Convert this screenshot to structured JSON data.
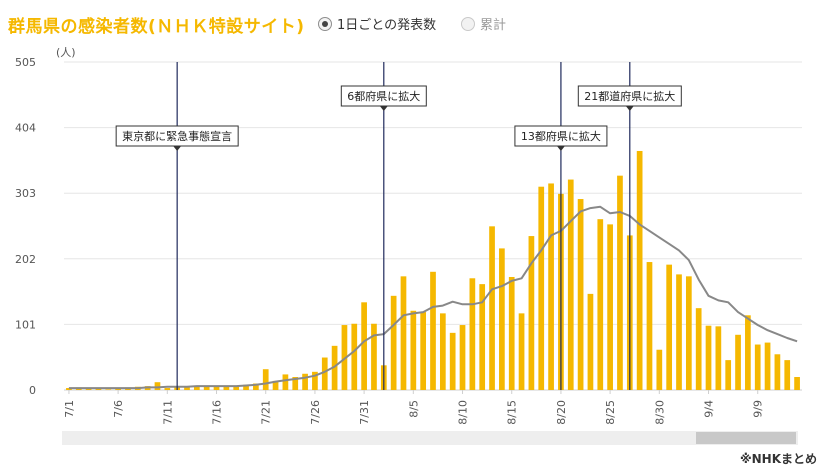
{
  "header": {
    "title": "群馬県の感染者数(ＮＨＫ特設サイト)",
    "radio_daily": "1日ごとの発表数",
    "radio_cumulative": "累計"
  },
  "footer": {
    "source": "※NHKまとめ"
  },
  "colors": {
    "bar": "#f5b800",
    "line": "#888888",
    "title": "#f5b800"
  },
  "chart_data": {
    "type": "bar",
    "ylabel": "(人)",
    "ylim": [
      0,
      505
    ],
    "yticks": [
      0,
      101,
      202,
      303,
      404,
      505
    ],
    "grid": true,
    "x": [
      "7/1",
      "7/2",
      "7/3",
      "7/4",
      "7/5",
      "7/6",
      "7/7",
      "7/8",
      "7/9",
      "7/10",
      "7/11",
      "7/12",
      "7/13",
      "7/14",
      "7/15",
      "7/16",
      "7/17",
      "7/18",
      "7/19",
      "7/20",
      "7/21",
      "7/22",
      "7/23",
      "7/24",
      "7/25",
      "7/26",
      "7/27",
      "7/28",
      "7/29",
      "7/30",
      "7/31",
      "8/1",
      "8/2",
      "8/3",
      "8/4",
      "8/5",
      "8/6",
      "8/7",
      "8/8",
      "8/9",
      "8/10",
      "8/11",
      "8/12",
      "8/13",
      "8/14",
      "8/15",
      "8/16",
      "8/17",
      "8/18",
      "8/19",
      "8/20",
      "8/21",
      "8/22",
      "8/23",
      "8/24",
      "8/25",
      "8/26",
      "8/27",
      "8/28",
      "8/29",
      "8/30",
      "8/31",
      "9/1",
      "9/2",
      "9/3",
      "9/4",
      "9/5",
      "9/6",
      "9/7",
      "9/8",
      "9/9",
      "9/10",
      "9/11",
      "9/12",
      "9/13"
    ],
    "xtick_labels": [
      "7/1",
      "7/6",
      "7/11",
      "7/16",
      "7/21",
      "7/26",
      "7/31",
      "8/5",
      "8/10",
      "8/15",
      "8/20",
      "8/25",
      "8/30",
      "9/4",
      "9/9"
    ],
    "series": [
      {
        "type": "bar",
        "values": [
          3,
          4,
          3,
          2,
          1,
          3,
          4,
          5,
          6,
          12,
          3,
          5,
          4,
          5,
          7,
          6,
          7,
          6,
          8,
          10,
          32,
          14,
          24,
          20,
          25,
          28,
          50,
          68,
          100,
          102,
          135,
          102,
          38,
          145,
          175,
          122,
          120,
          182,
          118,
          88,
          100,
          172,
          163,
          252,
          218,
          174,
          118,
          237,
          313,
          318,
          302,
          324,
          294,
          148,
          263,
          255,
          330,
          238,
          368,
          197,
          62,
          193,
          178,
          175,
          126,
          99,
          98,
          46,
          85,
          115,
          70,
          73,
          55,
          46,
          20
        ]
      },
      {
        "type": "line",
        "values": [
          3,
          3,
          3,
          3,
          3,
          3,
          3,
          3,
          4,
          4,
          5,
          5,
          5,
          6,
          6,
          6,
          6,
          6,
          7,
          8,
          10,
          13,
          15,
          17,
          19,
          22,
          28,
          36,
          48,
          60,
          75,
          84,
          86,
          100,
          115,
          118,
          120,
          128,
          130,
          136,
          132,
          132,
          135,
          155,
          160,
          168,
          172,
          195,
          215,
          238,
          245,
          260,
          275,
          280,
          282,
          272,
          274,
          268,
          255,
          245,
          235,
          225,
          215,
          200,
          170,
          145,
          138,
          135,
          120,
          110,
          100,
          92,
          86,
          80,
          75
        ]
      }
    ],
    "annotations": [
      {
        "label": "東京都に緊急事態宣言",
        "x": "7/12"
      },
      {
        "label": "6都府県に拡大",
        "x": "8/2"
      },
      {
        "label": "13都府県に拡大",
        "x": "8/20"
      },
      {
        "label": "21都道府県に拡大",
        "x": "8/27"
      }
    ]
  }
}
